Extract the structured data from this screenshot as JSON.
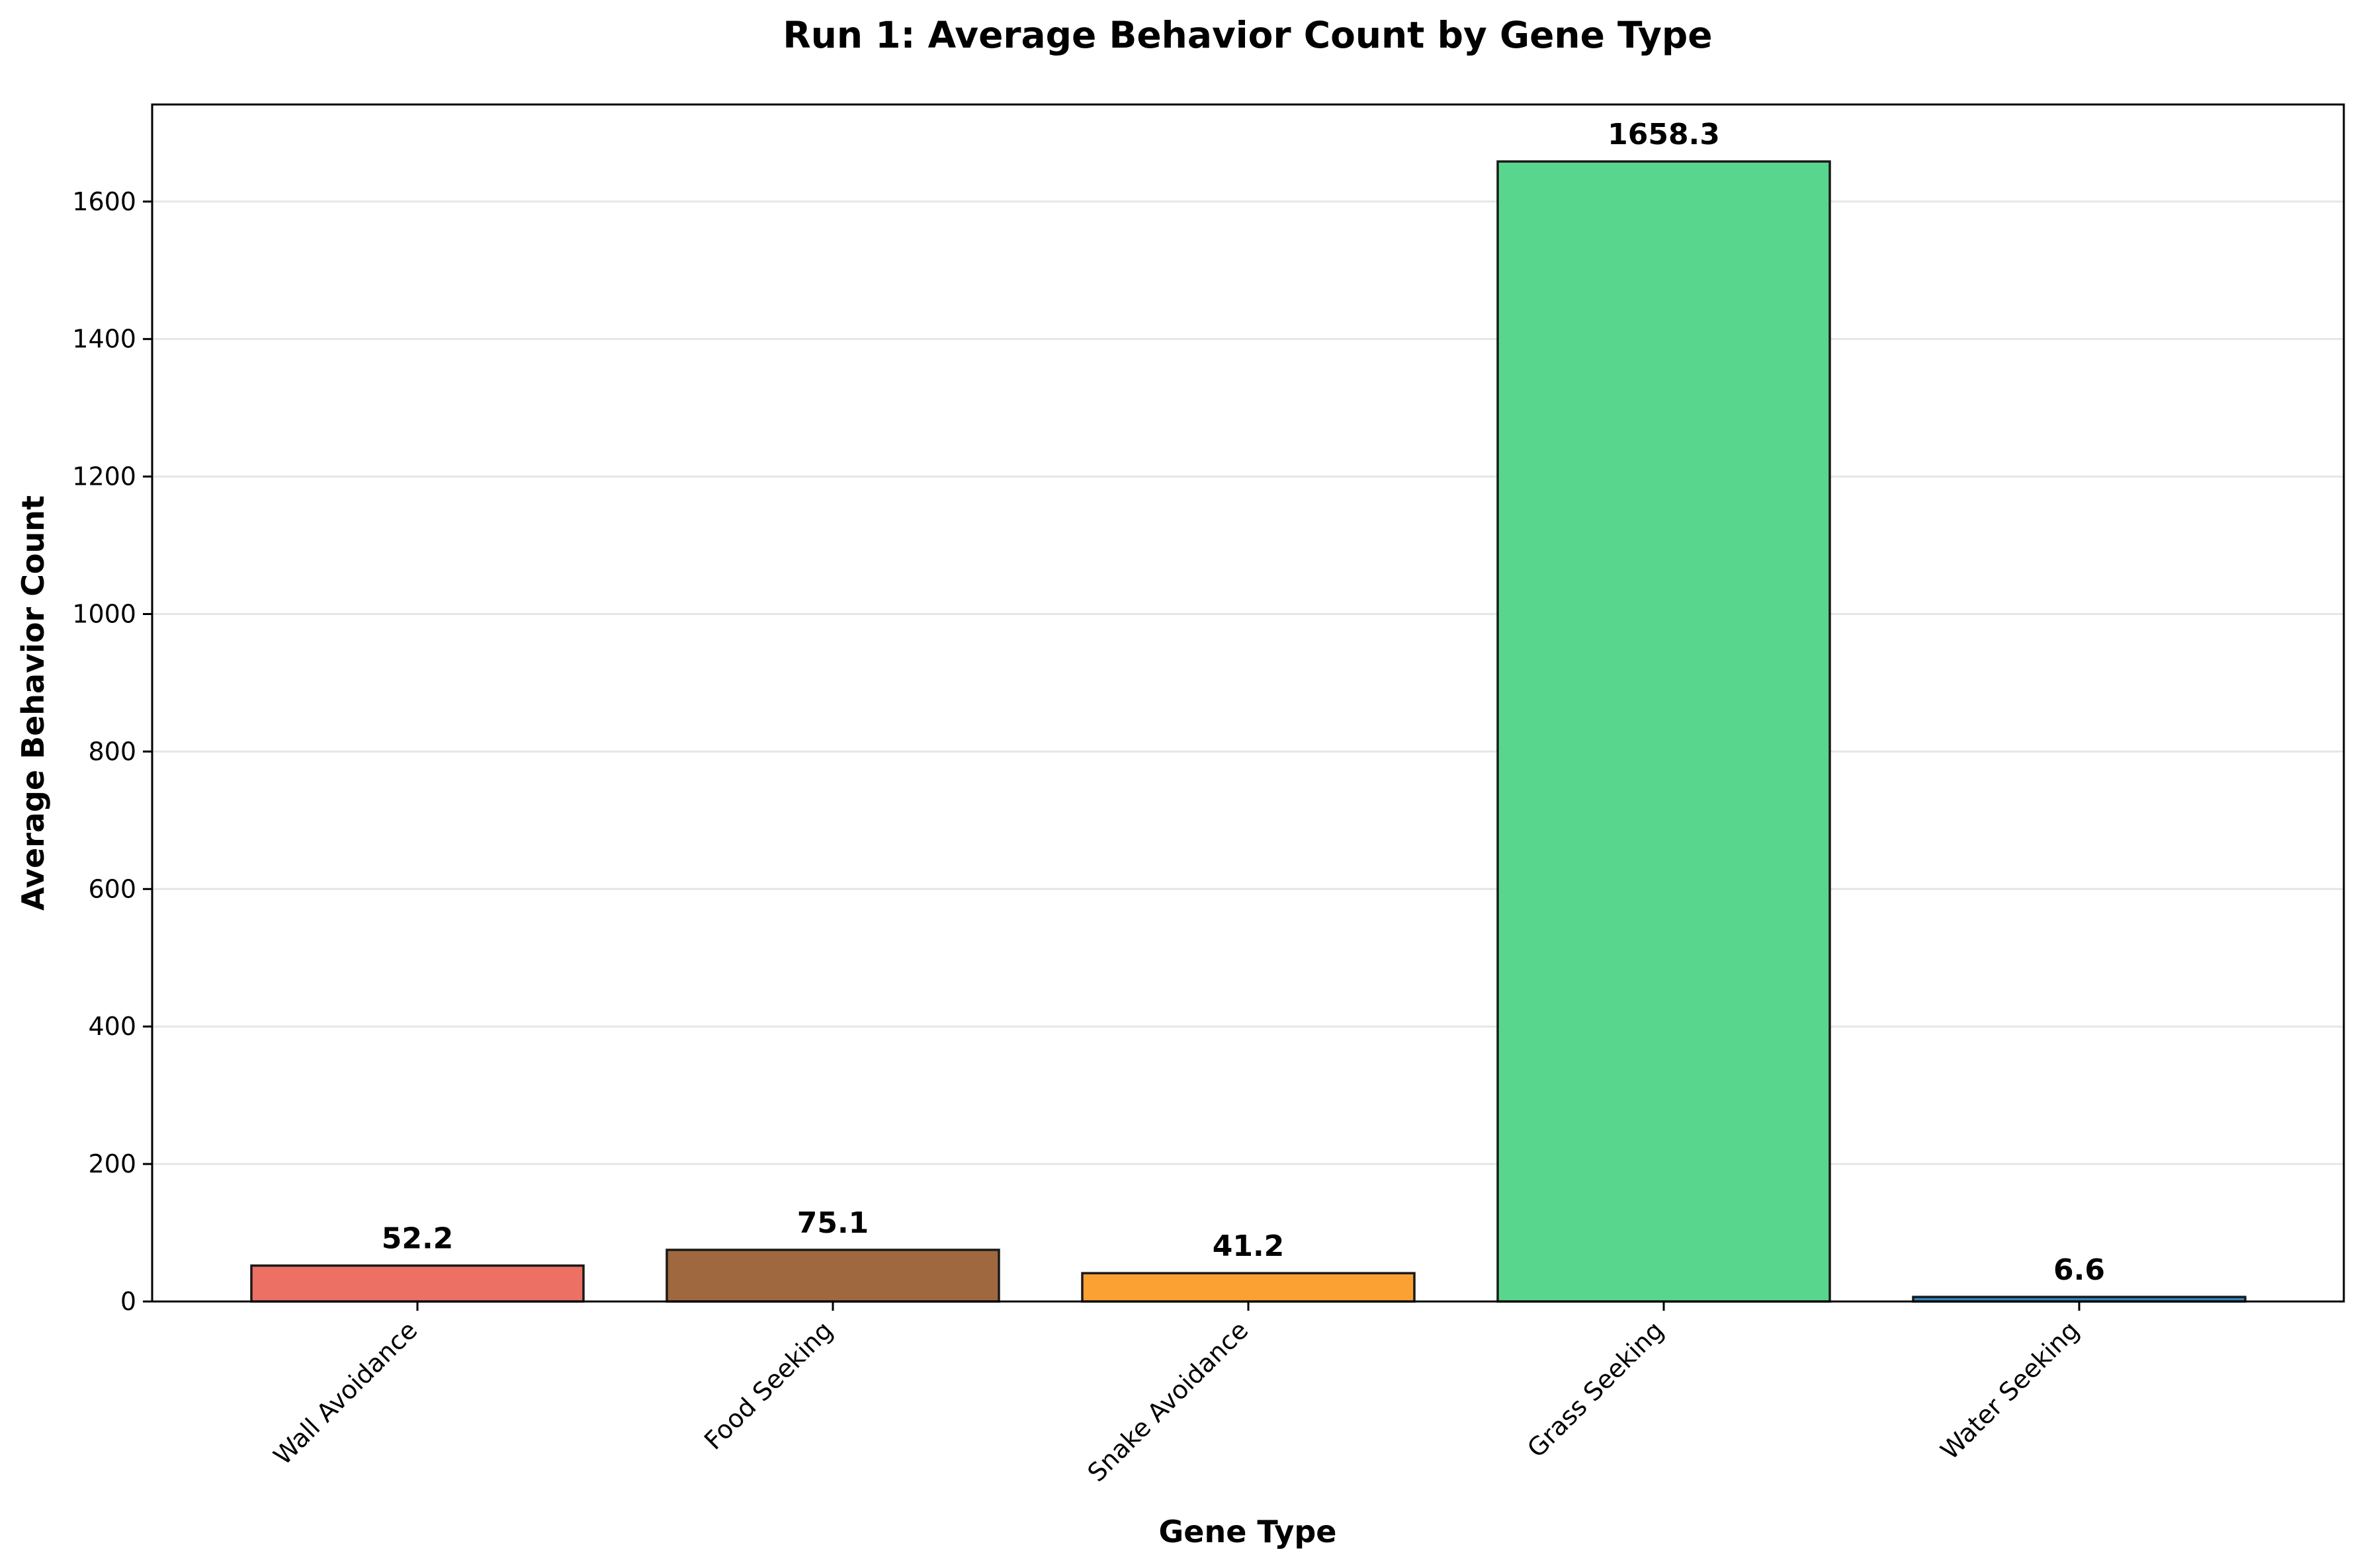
{
  "chart_data": {
    "type": "bar",
    "title": "Run 1: Average Behavior Count by Gene Type",
    "xlabel": "Gene Type",
    "ylabel": "Average Behavior Count",
    "categories": [
      "Wall Avoidance",
      "Food Seeking",
      "Snake Avoidance",
      "Grass Seeking",
      "Water Seeking"
    ],
    "values": [
      52.2,
      75.1,
      41.2,
      1658.3,
      6.6
    ],
    "data_labels": [
      "52.2",
      "75.1",
      "41.2",
      "1658.3",
      "6.6"
    ],
    "colors": [
      "#ec7063",
      "#a0683f",
      "#fba134",
      "#58d68d",
      "#2e86c1"
    ],
    "ylim": [
      0,
      1741.2
    ],
    "yticks": [
      0,
      200,
      400,
      600,
      800,
      1000,
      1200,
      1400,
      1600
    ],
    "grid": "horizontal",
    "legend": "none"
  }
}
